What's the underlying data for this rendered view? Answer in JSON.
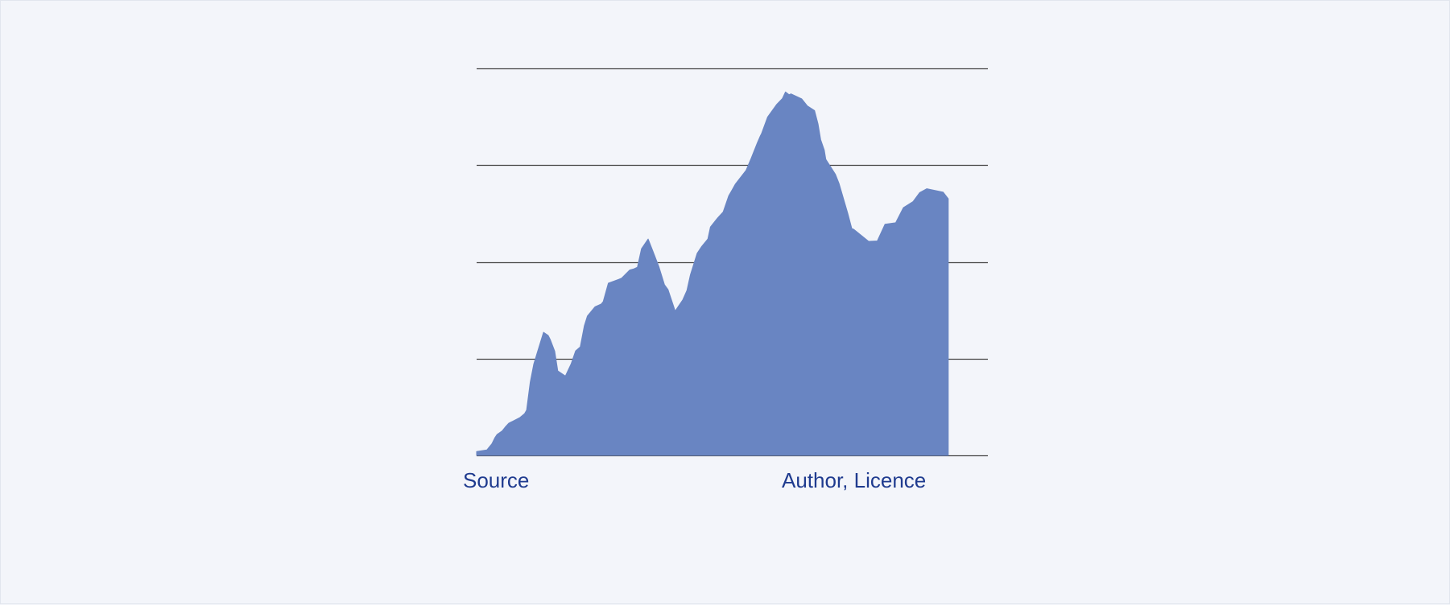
{
  "links": {
    "source": "Source",
    "credit": "Author, Licence"
  },
  "colors": {
    "background": "#f3f5fa",
    "area_fill": "#6985c2",
    "grid": "#444444",
    "link": "#1f3b8f"
  },
  "chart_data": {
    "type": "area",
    "title": "",
    "xlabel": "",
    "ylabel": "",
    "grid": true,
    "xlim": [
      0,
      100
    ],
    "ylim": [
      0,
      100
    ],
    "gridlines": [
      0,
      25,
      50,
      75,
      100
    ],
    "series": [
      {
        "x": [
          0,
          2,
          3,
          3.6,
          4,
          5,
          5.6,
          6.3,
          8.5,
          9.4,
          9.8,
          10.5,
          11.2,
          11.8,
          13.1,
          14,
          14.4,
          15.3,
          15.9,
          17.4,
          18.5,
          19.4,
          20.3,
          21.1,
          21.7,
          23.2,
          24.4,
          24.8,
          25.8,
          27.9,
          28.4,
          30,
          30.8,
          31.5,
          32.3,
          33.6,
          34.5,
          35.7,
          36.8,
          37.5,
          38.9,
          40.4,
          41.2,
          41.9,
          43.2,
          44.1,
          45.3,
          45.8,
          47.2,
          48.3,
          49.4,
          50.1,
          50.7,
          52.8,
          53.8,
          55,
          55.6,
          55.8,
          57,
          58.8,
          59.9,
          60.5,
          61.2,
          61.6,
          63.7,
          64.8,
          66.2,
          66.9,
          67.4,
          68.1,
          68.4,
          70.3,
          71,
          72.7,
          73.5,
          73.9,
          76.8,
          78.5,
          80,
          82.1,
          83.6,
          85.5,
          86.8,
          88.2,
          91.4,
          92.4
        ],
        "y": [
          1,
          1.4,
          3,
          4.6,
          5.4,
          6.3,
          7.3,
          8.3,
          9.8,
          10.8,
          11.7,
          18.9,
          23.6,
          26.2,
          31.8,
          31,
          30,
          26.9,
          21.8,
          20.5,
          23.6,
          27,
          28,
          33.5,
          36,
          38.4,
          39.1,
          39.7,
          44.5,
          45.5,
          45.8,
          47.9,
          48.2,
          48.6,
          53.4,
          55.9,
          52.9,
          48.8,
          44.1,
          42.8,
          37.3,
          40.2,
          42.6,
          46.7,
          52.2,
          54,
          55.9,
          59,
          61.3,
          62.9,
          67.1,
          68.7,
          70.1,
          73.7,
          76.8,
          80.8,
          82.6,
          83.1,
          87.4,
          90.7,
          92.2,
          93.9,
          93.2,
          93.4,
          92.1,
          90.3,
          89.1,
          85.6,
          81.6,
          78.9,
          76.5,
          72.6,
          70.3,
          62.6,
          58.6,
          58.4,
          55.3,
          55.4,
          59.7,
          60.1,
          64,
          65.6,
          67.9,
          68.9,
          68,
          66.3
        ]
      }
    ]
  }
}
